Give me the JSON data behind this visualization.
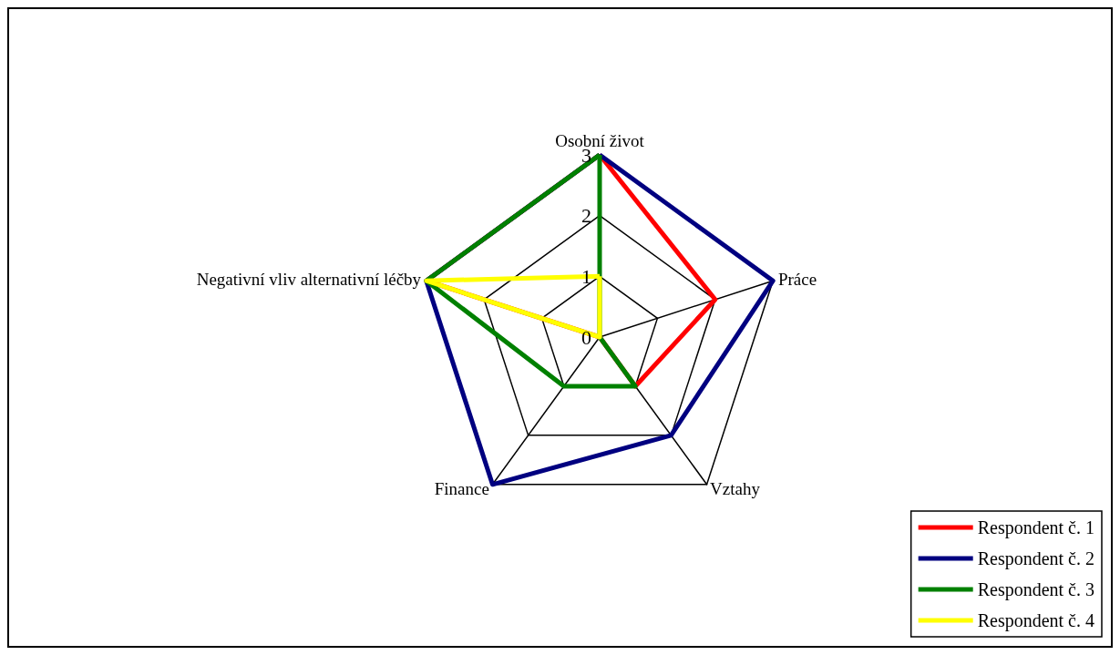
{
  "chart_data": {
    "type": "radar",
    "categories": [
      "Osobní život",
      "Práce",
      "Vztahy",
      "Finance",
      "Negativní vliv alternativní léčby"
    ],
    "ylim": [
      0,
      3
    ],
    "yticks": [
      0,
      1,
      2,
      3
    ],
    "legend": "bottom right",
    "marker": "none",
    "line_style": "solid",
    "grid": true,
    "series": [
      {
        "name": "Respondent č. 1",
        "color": "#ff0000",
        "values": [
          3,
          2,
          1,
          0,
          3
        ]
      },
      {
        "name": "Respondent č. 2",
        "color": "#000080",
        "values": [
          3,
          3,
          2,
          3,
          3
        ]
      },
      {
        "name": "Respondent č. 3",
        "color": "#008000",
        "values": [
          3,
          0,
          1,
          1,
          3
        ]
      },
      {
        "name": "Respondent č. 4",
        "color": "#ffff00",
        "values": [
          1,
          0,
          0,
          0,
          3
        ]
      }
    ]
  }
}
